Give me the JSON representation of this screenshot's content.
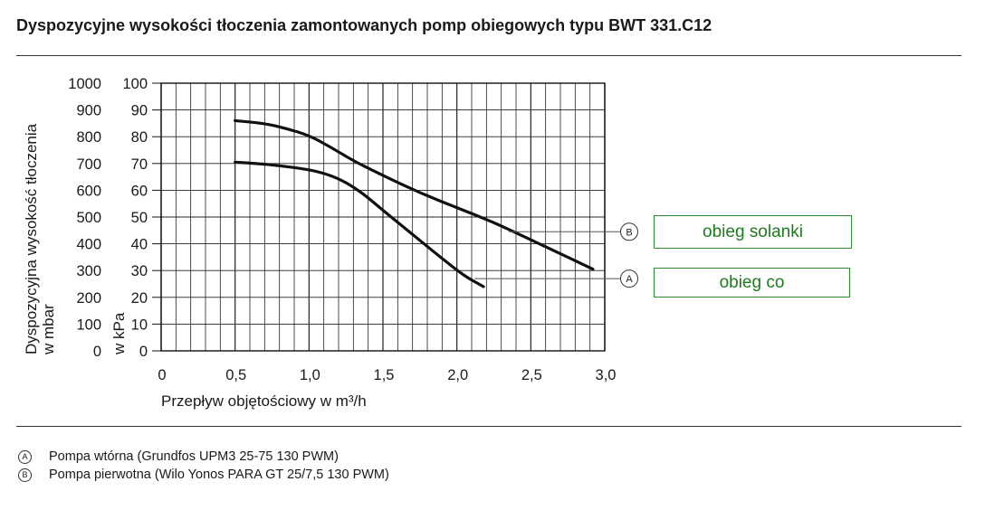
{
  "header": {
    "title": "Dyspozycyjne wysokości tłoczenia zamontowanych pomp obiegowych typu BWT 331.C12"
  },
  "chart_data": {
    "type": "line",
    "title": "",
    "xlabel": "Przepływ objętościowy w m³/h",
    "ylabel_mbar": "Dyspozycyjna wysokość tłoczenia\nw mbar",
    "ylabel_kpa": "w kPa",
    "xlim": [
      0,
      3.0
    ],
    "ylim_mbar": [
      0,
      1000
    ],
    "ylim_kpa": [
      0,
      100
    ],
    "grid": true,
    "x_ticks": [
      "0",
      "0,5",
      "1,0",
      "1,5",
      "2,0",
      "2,5",
      "3,0"
    ],
    "y_ticks_mbar": [
      "0",
      "100",
      "200",
      "300",
      "400",
      "500",
      "600",
      "700",
      "800",
      "900",
      "1000"
    ],
    "y_ticks_kpa": [
      "0",
      "10",
      "20",
      "30",
      "40",
      "50",
      "60",
      "70",
      "80",
      "90",
      "100"
    ],
    "series": [
      {
        "name": "A",
        "unit": "kPa",
        "x": [
          0.5,
          0.7,
          0.9,
          1.05,
          1.2,
          1.35,
          1.5,
          1.7,
          1.9,
          2.05,
          2.18
        ],
        "y": [
          70.5,
          69.8,
          68.5,
          67.2,
          64.5,
          59.5,
          52.5,
          43.5,
          34.5,
          28,
          24
        ],
        "color": "#111111"
      },
      {
        "name": "B",
        "unit": "kPa",
        "x": [
          0.5,
          0.7,
          0.85,
          1.0,
          1.15,
          1.3,
          1.5,
          1.75,
          2.0,
          2.25,
          2.5,
          2.75,
          2.92
        ],
        "y": [
          86,
          85,
          83,
          80.5,
          76,
          71,
          65.5,
          59,
          53.5,
          48,
          41.5,
          35,
          30.5
        ],
        "color": "#111111"
      }
    ],
    "callouts": [
      {
        "marker": "B",
        "x": 2.35,
        "y": 44.5,
        "box_label": "obieg solanki"
      },
      {
        "marker": "A",
        "x": 2.12,
        "y": 27,
        "box_label": "obieg co"
      }
    ]
  },
  "legend": [
    {
      "marker": "A",
      "text": "Pompa wtórna (Grundfos UPM3 25-75 130 PWM)"
    },
    {
      "marker": "B",
      "text": "Pompa pierwotna (Wilo Yonos PARA GT 25/7,5 130 PWM)"
    }
  ],
  "colors": {
    "box_border": "#2e8b2e",
    "box_text": "#1f7a1f",
    "curve": "#111111"
  }
}
